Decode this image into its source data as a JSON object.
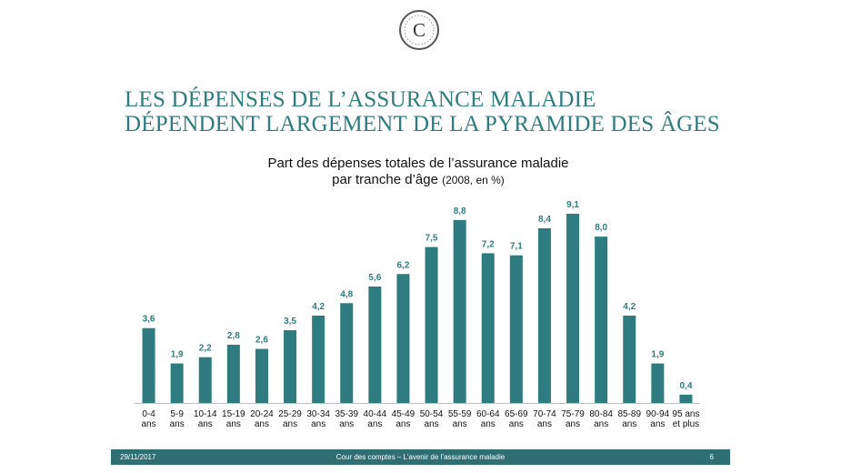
{
  "slide": {
    "title_line1": "LES DÉPENSES DE L’ASSURANCE MALADIE",
    "title_line2": "DÉPENDENT LARGEMENT DE LA PYRAMIDE DES ÂGES",
    "logo_letter": "C",
    "accent_color": "#2e7c80"
  },
  "chart_data": {
    "type": "bar",
    "title_line1": "Part des dépenses totales de l’assurance maladie",
    "title_line2": "par tranche d’âge",
    "title_note": "(2008, en %)",
    "bar_color": "#2e7c80",
    "categories": [
      [
        "0-4",
        "ans"
      ],
      [
        "5-9",
        "ans"
      ],
      [
        "10-14",
        "ans"
      ],
      [
        "15-19",
        "ans"
      ],
      [
        "20-24",
        "ans"
      ],
      [
        "25-29",
        "ans"
      ],
      [
        "30-34",
        "ans"
      ],
      [
        "35-39",
        "ans"
      ],
      [
        "40-44",
        "ans"
      ],
      [
        "45-49",
        "ans"
      ],
      [
        "50-54",
        "ans"
      ],
      [
        "55-59",
        "ans"
      ],
      [
        "60-64",
        "ans"
      ],
      [
        "65-69",
        "ans"
      ],
      [
        "70-74",
        "ans"
      ],
      [
        "75-79",
        "ans"
      ],
      [
        "80-84",
        "ans"
      ],
      [
        "85-89",
        "ans"
      ],
      [
        "90-94",
        "ans"
      ],
      [
        "95 ans",
        "et plus"
      ]
    ],
    "values": [
      3.6,
      1.9,
      2.2,
      2.8,
      2.6,
      3.5,
      4.2,
      4.8,
      5.6,
      6.2,
      7.5,
      8.8,
      7.2,
      7.1,
      8.4,
      9.1,
      8.0,
      4.2,
      1.9,
      0.4
    ],
    "value_labels": [
      "3,6",
      "1,9",
      "2,2",
      "2,8",
      "2,6",
      "3,5",
      "4,2",
      "4,8",
      "5,6",
      "6,2",
      "7,5",
      "8,8",
      "7,2",
      "7,1",
      "8,4",
      "9,1",
      "8,0",
      "4,2",
      "1,9",
      "0,4"
    ],
    "grid": false,
    "legend": "none"
  },
  "footer": {
    "date": "29/11/2017",
    "center_text": "Cour des comptes – L’avenir de l’assurance maladie",
    "page_number": "6"
  }
}
